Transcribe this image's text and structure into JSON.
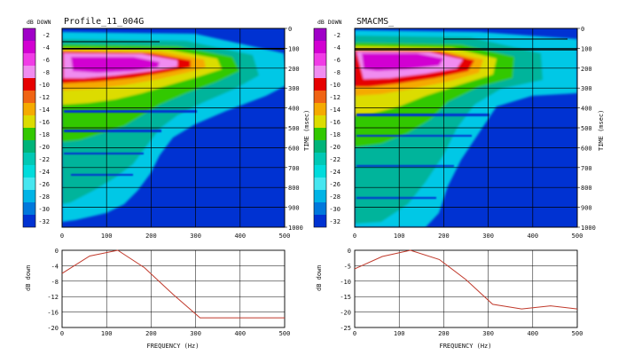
{
  "colorbar": {
    "title": "dB DOWN",
    "levels": [
      {
        "label": "-2",
        "color": "#a000c8"
      },
      {
        "label": "-4",
        "color": "#d200d2"
      },
      {
        "label": "-6",
        "color": "#f03ce6"
      },
      {
        "label": "-8",
        "color": "#f08cf0"
      },
      {
        "label": "-10",
        "color": "#e60000"
      },
      {
        "label": "-12",
        "color": "#f06414"
      },
      {
        "label": "-14",
        "color": "#f5aa00"
      },
      {
        "label": "-16",
        "color": "#dcdc00"
      },
      {
        "label": "-18",
        "color": "#32c800"
      },
      {
        "label": "-20",
        "color": "#00b478"
      },
      {
        "label": "-22",
        "color": "#00c8b4"
      },
      {
        "label": "-24",
        "color": "#00dcdc"
      },
      {
        "label": "-26",
        "color": "#46e6f0"
      },
      {
        "label": "-28",
        "color": "#00b4e6"
      },
      {
        "label": "-30",
        "color": "#0078dc"
      },
      {
        "label": "-32",
        "color": "#0032d2"
      }
    ]
  },
  "colors": {
    "background": "#0032d2",
    "line": "#c0392b",
    "grid": "#000000"
  },
  "chart_data": [
    {
      "type": "heatmap",
      "title": "Profile_11_004G",
      "xlabel": "",
      "ylabel": "TIME (msec)",
      "xlim": [
        0,
        500
      ],
      "ylim": [
        0,
        1000
      ],
      "xticks": [
        "0",
        "100",
        "200",
        "300",
        "400",
        "500"
      ],
      "yticks": [
        "0",
        "100",
        "200",
        "300",
        "400",
        "500",
        "600",
        "700",
        "800",
        "900",
        "1000"
      ],
      "grid": true,
      "value_unit": "dB DOWN",
      "reverberation_extent": {
        "time_msec": [
          100,
          200,
          300,
          400,
          500,
          600,
          700,
          800,
          900,
          950
        ],
        "max_frequency_hz": [
          320,
          300,
          260,
          210,
          170,
          150,
          140,
          120,
          110,
          90
        ]
      }
    },
    {
      "type": "heatmap",
      "title": "SMACMS_",
      "xlabel": "",
      "ylabel": "TIME (msec)",
      "xlim": [
        0,
        500
      ],
      "ylim": [
        0,
        1000
      ],
      "xticks": [
        "0",
        "100",
        "200",
        "300",
        "400",
        "500"
      ],
      "yticks": [
        "0",
        "100",
        "200",
        "300",
        "400",
        "500",
        "600",
        "700",
        "800",
        "900",
        "1000"
      ],
      "grid": true,
      "value_unit": "dB DOWN",
      "reverberation_extent": {
        "time_msec": [
          100,
          200,
          300,
          400,
          500,
          600,
          700,
          800,
          900,
          1000
        ],
        "max_frequency_hz": [
          430,
          380,
          300,
          260,
          230,
          210,
          200,
          180,
          160,
          150
        ]
      }
    },
    {
      "type": "line",
      "xlabel": "FREQUENCY (Hz)",
      "ylabel": "dB down",
      "xlim": [
        0,
        500
      ],
      "ylim": [
        -20,
        0
      ],
      "xticks": [
        "0",
        "100",
        "200",
        "300",
        "400",
        "500"
      ],
      "yticks": [
        "0",
        "-4",
        "-8",
        "-12",
        "-16",
        "-20"
      ],
      "grid": true,
      "x": [
        0,
        62,
        125,
        185,
        250,
        310,
        500
      ],
      "values": [
        -6,
        -1.5,
        0,
        -4.5,
        -11.5,
        -17.5,
        -17.5
      ]
    },
    {
      "type": "line",
      "xlabel": "FREQUENCY (Hz)",
      "ylabel": "dB down",
      "xlim": [
        0,
        500
      ],
      "ylim": [
        -25,
        0
      ],
      "xticks": [
        "0",
        "100",
        "200",
        "300",
        "400",
        "500"
      ],
      "yticks": [
        "0",
        "-5",
        "-10",
        "-15",
        "-20",
        "-25"
      ],
      "grid": true,
      "x": [
        0,
        62,
        125,
        190,
        250,
        310,
        375,
        440,
        500
      ],
      "values": [
        -6,
        -2,
        0,
        -3,
        -9.5,
        -17.5,
        -19,
        -18,
        -19
      ]
    }
  ]
}
